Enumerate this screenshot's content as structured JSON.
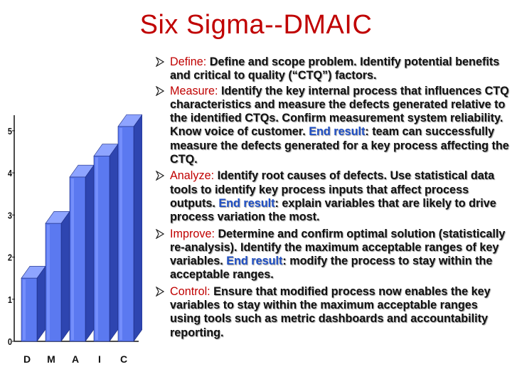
{
  "title": "Six Sigma--DMAIC",
  "colors": {
    "title": "#c00000",
    "label": "#c00000",
    "end_result": "#1f4fc4",
    "bar_face": "#5b79f0",
    "bar_side": "#2e45b0"
  },
  "chart_data": {
    "type": "bar",
    "categories": [
      "D",
      "M",
      "A",
      "I",
      "C"
    ],
    "values": [
      1.5,
      2.8,
      3.9,
      4.4,
      5.1
    ],
    "ylim": [
      0,
      5.5
    ],
    "yticks": [
      "0",
      "1",
      "2",
      "3",
      "4",
      "5"
    ],
    "grid": false
  },
  "bullets": [
    {
      "label": "Define:",
      "segments": [
        {
          "t": " Define and scope problem. Identify potential benefits and critical to quality (“CTQ”) factors.",
          "c": "normal"
        }
      ]
    },
    {
      "label": "Measure:",
      "segments": [
        {
          "t": " Identify the key internal process that influences CTQ characteristics and measure the defects generated relative to the identified CTQs. Confirm measurement system reliability. Know voice of customer. ",
          "c": "normal"
        },
        {
          "t": "End result",
          "c": "er"
        },
        {
          "t": ": team can successfully measure the defects generated for a key process affecting the CTQ.",
          "c": "normal"
        }
      ]
    },
    {
      "label": "Analyze:",
      "segments": [
        {
          "t": " Identify root causes of defects. Use statistical data tools to identify key process inputs that affect process outputs. ",
          "c": "normal"
        },
        {
          "t": "End result",
          "c": "er"
        },
        {
          "t": ": explain variables that are likely to drive process variation the most.",
          "c": "normal"
        }
      ]
    },
    {
      "label": "Improve:",
      "segments": [
        {
          "t": " Determine and confirm optimal solution (statistically re-analysis). Identify the maximum acceptable ranges of key variables. ",
          "c": "normal"
        },
        {
          "t": "End result",
          "c": "er"
        },
        {
          "t": ": modify the process to stay within the acceptable ranges.",
          "c": "normal"
        }
      ]
    },
    {
      "label": "Control:",
      "segments": [
        {
          "t": " Ensure that modified process now enables the key variables to stay within the maximum acceptable ranges using tools such as metric dashboards and accountability reporting.",
          "c": "normal"
        }
      ]
    }
  ]
}
